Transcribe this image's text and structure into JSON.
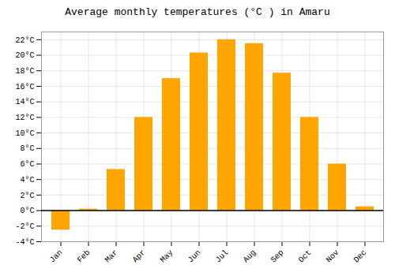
{
  "chart_data": {
    "type": "bar",
    "title": "Average monthly temperatures (°C ) in Amaru",
    "categories": [
      "Jan",
      "Feb",
      "Mar",
      "Apr",
      "May",
      "Jun",
      "Jul",
      "Aug",
      "Sep",
      "Oct",
      "Nov",
      "Dec"
    ],
    "values": [
      -2.5,
      0.2,
      5.3,
      12.0,
      17.0,
      20.3,
      22.0,
      21.5,
      17.7,
      12.0,
      6.0,
      0.5
    ],
    "color": "#FFA500",
    "ylim": [
      -4,
      23
    ],
    "yticks": [
      {
        "value": -4,
        "label": "-4°C"
      },
      {
        "value": -2,
        "label": "-2°C"
      },
      {
        "value": 0,
        "label": "0°C"
      },
      {
        "value": 2,
        "label": "2°C"
      },
      {
        "value": 4,
        "label": "4°C"
      },
      {
        "value": 6,
        "label": "6°C"
      },
      {
        "value": 8,
        "label": "8°C"
      },
      {
        "value": 10,
        "label": "10°C"
      },
      {
        "value": 12,
        "label": "12°C"
      },
      {
        "value": 14,
        "label": "14°C"
      },
      {
        "value": 16,
        "label": "16°C"
      },
      {
        "value": 18,
        "label": "18°C"
      },
      {
        "value": 20,
        "label": "20°C"
      },
      {
        "value": 22,
        "label": "22°C"
      }
    ],
    "grid": true
  }
}
